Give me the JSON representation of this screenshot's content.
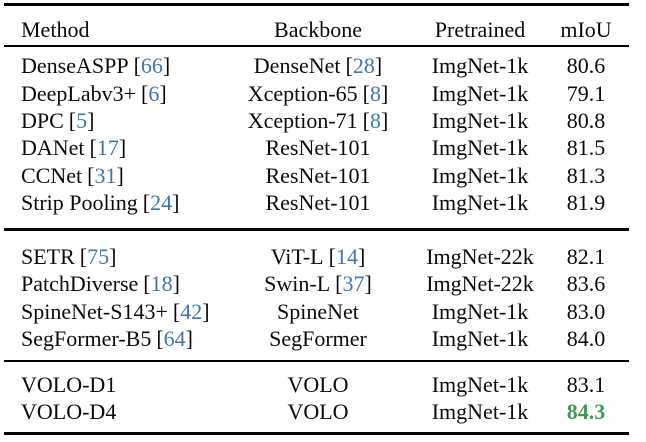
{
  "table": {
    "header": {
      "method": "Method",
      "backbone": "Backbone",
      "pretrained": "Pretrained",
      "miou": "mIoU"
    },
    "brackets": {
      "open": "[",
      "close": "]"
    },
    "groups": [
      {
        "rows": [
          {
            "method": "DenseASPP",
            "method_cite": "66",
            "backbone": "DenseNet",
            "backbone_cite": "28",
            "pretrained": "ImgNet-1k",
            "miou": "80.6"
          },
          {
            "method": "DeepLabv3+",
            "method_cite": "6",
            "backbone": "Xception-65",
            "backbone_cite": "8",
            "pretrained": "ImgNet-1k",
            "miou": "79.1"
          },
          {
            "method": "DPC",
            "method_cite": "5",
            "backbone": "Xception-71",
            "backbone_cite": "8",
            "pretrained": "ImgNet-1k",
            "miou": "80.8"
          },
          {
            "method": "DANet",
            "method_cite": "17",
            "backbone": "ResNet-101",
            "pretrained": "ImgNet-1k",
            "miou": "81.5"
          },
          {
            "method": "CCNet",
            "method_cite": "31",
            "backbone": "ResNet-101",
            "pretrained": "ImgNet-1k",
            "miou": "81.3"
          },
          {
            "method": "Strip Pooling",
            "method_cite": "24",
            "backbone": "ResNet-101",
            "pretrained": "ImgNet-1k",
            "miou": "81.9"
          }
        ]
      },
      {
        "rows": [
          {
            "method": "SETR",
            "method_cite": "75",
            "backbone": "ViT-L",
            "backbone_cite": "14",
            "pretrained": "ImgNet-22k",
            "miou": "82.1"
          },
          {
            "method": "PatchDiverse",
            "method_cite": "18",
            "backbone": "Swin-L",
            "backbone_cite": "37",
            "pretrained": "ImgNet-22k",
            "miou": "83.6"
          },
          {
            "method": "SpineNet-S143+",
            "method_cite": "42",
            "backbone": "SpineNet",
            "pretrained": "ImgNet-1k",
            "miou": "83.0"
          },
          {
            "method": "SegFormer-B5",
            "method_cite": "64",
            "backbone": "SegFormer",
            "pretrained": "ImgNet-1k",
            "miou": "84.0"
          }
        ]
      },
      {
        "rows": [
          {
            "method": "VOLO-D1",
            "backbone": "VOLO",
            "pretrained": "ImgNet-1k",
            "miou": "83.1"
          },
          {
            "method": "VOLO-D4",
            "backbone": "VOLO",
            "pretrained": "ImgNet-1k",
            "miou": "84.3",
            "miou_highlight": true
          }
        ]
      }
    ]
  },
  "colors": {
    "text": "#0b0b0b",
    "citation": "#3e76ad",
    "highlight": "#3d9a51",
    "rule": "#000000"
  }
}
